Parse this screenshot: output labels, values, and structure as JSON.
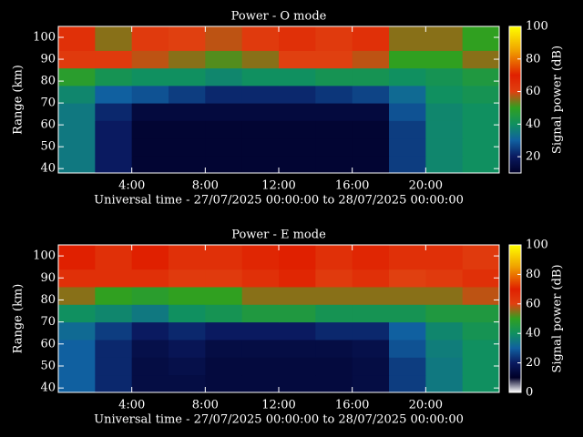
{
  "chart_data": [
    {
      "type": "heatmap",
      "title": "Power - O mode",
      "x_label": "Universal time - 27/07/2025 00:00:00 to 28/07/2025 00:00:00",
      "y_label": "Range (km)",
      "colorbar_label": "Signal power (dB)",
      "xbins": [
        0,
        2,
        4,
        6,
        8,
        10,
        12,
        14,
        16,
        18,
        20,
        22,
        24
      ],
      "ybins": [
        38,
        46,
        54,
        62,
        70,
        78,
        86,
        94,
        105
      ],
      "z": [
        [
          35,
          20,
          12,
          12,
          12,
          12,
          12,
          12,
          12,
          25,
          38,
          40
        ],
        [
          35,
          20,
          12,
          12,
          12,
          12,
          12,
          12,
          12,
          25,
          38,
          40
        ],
        [
          35,
          20,
          12,
          12,
          12,
          12,
          12,
          12,
          12,
          25,
          38,
          40
        ],
        [
          35,
          22,
          14,
          14,
          14,
          14,
          14,
          14,
          14,
          28,
          38,
          40
        ],
        [
          38,
          30,
          28,
          25,
          22,
          22,
          22,
          24,
          26,
          32,
          40,
          42
        ],
        [
          48,
          42,
          40,
          40,
          38,
          40,
          40,
          42,
          42,
          40,
          42,
          45
        ],
        [
          62,
          62,
          58,
          55,
          52,
          55,
          60,
          60,
          58,
          50,
          50,
          55
        ],
        [
          65,
          55,
          62,
          60,
          58,
          62,
          65,
          62,
          65,
          55,
          55,
          50
        ]
      ],
      "xlim": [
        0,
        24
      ],
      "ylim": [
        38,
        105
      ],
      "zlim": [
        10,
        100
      ],
      "xticks": [
        {
          "value": 4,
          "label": "4:00"
        },
        {
          "value": 8,
          "label": "8:00"
        },
        {
          "value": 12,
          "label": "12:00"
        },
        {
          "value": 16,
          "label": "16:00"
        },
        {
          "value": 20,
          "label": "20:00"
        }
      ],
      "yticks": [
        40,
        50,
        60,
        70,
        80,
        90,
        100
      ],
      "zticks": [
        20,
        40,
        60,
        80,
        100
      ],
      "colormap": [
        [
          0,
          "#ffffff"
        ],
        [
          10,
          "#000028"
        ],
        [
          20,
          "#0a1a60"
        ],
        [
          30,
          "#1060a0"
        ],
        [
          40,
          "#109060"
        ],
        [
          50,
          "#30a020"
        ],
        [
          60,
          "#e04010"
        ],
        [
          70,
          "#e02000"
        ],
        [
          85,
          "#f0a000"
        ],
        [
          100,
          "#ffff00"
        ]
      ]
    },
    {
      "type": "heatmap",
      "title": "Power - E mode",
      "x_label": "Universal time - 27/07/2025 00:00:00 to 28/07/2025 00:00:00",
      "y_label": "Range (km)",
      "colorbar_label": "Signal power (dB)",
      "xbins": [
        0,
        2,
        4,
        6,
        8,
        10,
        12,
        14,
        16,
        18,
        20,
        22,
        24
      ],
      "ybins": [
        38,
        46,
        54,
        62,
        70,
        78,
        86,
        94,
        105
      ],
      "z": [
        [
          30,
          22,
          15,
          15,
          14,
          14,
          14,
          14,
          15,
          25,
          35,
          40
        ],
        [
          30,
          22,
          15,
          16,
          14,
          14,
          14,
          14,
          15,
          25,
          35,
          40
        ],
        [
          30,
          22,
          16,
          18,
          15,
          15,
          15,
          15,
          16,
          28,
          36,
          40
        ],
        [
          32,
          25,
          20,
          22,
          20,
          20,
          20,
          22,
          22,
          30,
          38,
          42
        ],
        [
          40,
          38,
          35,
          40,
          42,
          45,
          45,
          42,
          42,
          42,
          45,
          45
        ],
        [
          55,
          50,
          48,
          50,
          50,
          55,
          55,
          55,
          55,
          55,
          55,
          58
        ],
        [
          65,
          65,
          65,
          62,
          62,
          65,
          68,
          62,
          65,
          60,
          62,
          65
        ],
        [
          70,
          65,
          70,
          65,
          65,
          68,
          70,
          65,
          68,
          65,
          65,
          62
        ]
      ],
      "xlim": [
        0,
        24
      ],
      "ylim": [
        38,
        105
      ],
      "zlim": [
        0,
        100
      ],
      "xticks": [
        {
          "value": 4,
          "label": "4:00"
        },
        {
          "value": 8,
          "label": "8:00"
        },
        {
          "value": 12,
          "label": "12:00"
        },
        {
          "value": 16,
          "label": "16:00"
        },
        {
          "value": 20,
          "label": "20:00"
        }
      ],
      "yticks": [
        40,
        50,
        60,
        70,
        80,
        90,
        100
      ],
      "zticks": [
        0,
        20,
        40,
        60,
        80,
        100
      ],
      "colormap": [
        [
          0,
          "#ffffff"
        ],
        [
          10,
          "#000028"
        ],
        [
          20,
          "#0a1a60"
        ],
        [
          30,
          "#1060a0"
        ],
        [
          40,
          "#109060"
        ],
        [
          50,
          "#30a020"
        ],
        [
          60,
          "#e04010"
        ],
        [
          70,
          "#e02000"
        ],
        [
          85,
          "#f0a000"
        ],
        [
          100,
          "#ffff00"
        ]
      ]
    }
  ]
}
